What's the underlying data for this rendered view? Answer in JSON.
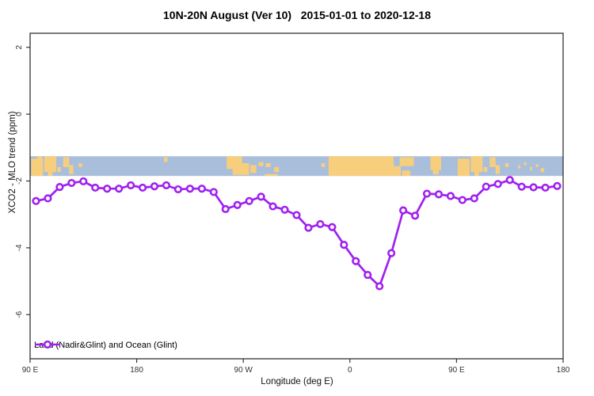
{
  "title": "10N-20N August (Ver 10)   2015-01-01 to 2020-12-18",
  "legend": {
    "label": "Land (Nadir&Glint) and Ocean (Glint)"
  },
  "colors": {
    "series": "#A020F0",
    "marker_fill": "#ffffff",
    "ocean": "#A9BEDB",
    "land": "#F7CE7C",
    "axis": "#333333",
    "tick_text": "#333333"
  },
  "chart_data": {
    "type": "line",
    "title": "10N-20N August (Ver 10)   2015-01-01 to 2020-12-18",
    "xlabel": "Longitude (deg E)",
    "ylabel": "XCO2 - MLO trend (ppm)",
    "series_name": "Land (Nadir&Glint) and Ocean (Glint)",
    "xlim": [
      90,
      540
    ],
    "ylim": [
      -7.32,
      2.42
    ],
    "grid": false,
    "legend_position": "bottom-left",
    "x_ticks": [
      {
        "pos": 90,
        "label": "90 E"
      },
      {
        "pos": 180,
        "label": "180"
      },
      {
        "pos": 270,
        "label": "90 W"
      },
      {
        "pos": 360,
        "label": "0"
      },
      {
        "pos": 450,
        "label": "90 E"
      },
      {
        "pos": 540,
        "label": "180"
      }
    ],
    "y_ticks": [
      {
        "pos": 2,
        "label": "2"
      },
      {
        "pos": 0,
        "label": "0"
      },
      {
        "pos": -2,
        "label": "-2"
      },
      {
        "pos": -4,
        "label": "-4"
      },
      {
        "pos": -6,
        "label": "-6"
      }
    ],
    "x_deg": [
      95,
      105,
      115,
      125,
      135,
      145,
      155,
      165,
      175,
      185,
      195,
      205,
      215,
      225,
      235,
      245,
      255,
      265,
      275,
      285,
      295,
      305,
      315,
      325,
      335,
      345,
      355,
      365,
      375,
      385,
      395,
      405,
      415,
      425,
      435,
      445,
      455,
      465,
      475,
      485,
      495,
      505,
      515,
      525,
      535
    ],
    "values": [
      -2.6,
      -2.52,
      -2.18,
      -2.06,
      -2.01,
      -2.2,
      -2.23,
      -2.23,
      -2.13,
      -2.2,
      -2.16,
      -2.13,
      -2.25,
      -2.23,
      -2.23,
      -2.33,
      -2.84,
      -2.72,
      -2.6,
      -2.47,
      -2.76,
      -2.86,
      -3.02,
      -3.4,
      -3.29,
      -3.38,
      -3.91,
      -4.4,
      -4.81,
      -5.15,
      -4.16,
      -2.88,
      -3.04,
      -2.38,
      -2.4,
      -2.45,
      -2.57,
      -2.52,
      -2.17,
      -2.09,
      -1.97,
      -2.17,
      -2.19,
      -2.2,
      -2.15
    ],
    "map_band": {
      "description": "world map strip of 10N-20N latitude band (ocean/land)",
      "v_top": -1.26,
      "v_bottom": -1.85,
      "land_patches": [
        [
          91,
          101,
          0.12,
          1
        ],
        [
          96,
          100,
          0,
          0.12
        ],
        [
          102,
          112,
          0,
          0.8
        ],
        [
          105,
          109,
          0.8,
          1
        ],
        [
          113,
          116,
          0.55,
          0.8
        ],
        [
          118,
          123,
          0.05,
          0.55
        ],
        [
          123,
          126.5,
          0.45,
          0.9
        ],
        [
          131,
          134,
          0.35,
          0.55
        ],
        [
          203,
          206,
          0.05,
          0.3
        ],
        [
          256,
          269,
          0,
          0.65
        ],
        [
          261,
          275,
          0.35,
          0.95
        ],
        [
          276,
          281,
          0.45,
          0.85
        ],
        [
          283,
          287,
          0.3,
          0.5
        ],
        [
          289,
          293,
          0.35,
          0.55
        ],
        [
          296,
          300,
          0.55,
          0.8
        ],
        [
          288,
          299,
          0.9,
          1
        ],
        [
          336,
          339,
          0.35,
          0.55
        ],
        [
          342,
          397,
          0,
          1
        ],
        [
          397,
          403,
          0.5,
          1
        ],
        [
          402,
          414,
          0.05,
          0.5
        ],
        [
          404,
          411,
          0.72,
          1
        ],
        [
          428,
          437,
          0,
          0.7
        ],
        [
          430,
          435,
          0.7,
          0.92
        ],
        [
          451,
          461,
          0.12,
          1
        ],
        [
          462,
          472,
          0,
          0.8
        ],
        [
          465,
          469,
          0.8,
          1
        ],
        [
          473,
          476,
          0.55,
          0.8
        ],
        [
          478,
          483,
          0.05,
          0.55
        ],
        [
          483,
          486.5,
          0.45,
          0.9
        ],
        [
          491,
          494,
          0.35,
          0.55
        ],
        [
          502,
          504,
          0.45,
          0.62
        ],
        [
          507,
          509,
          0.3,
          0.46
        ],
        [
          512,
          514,
          0.55,
          0.7
        ],
        [
          517,
          519,
          0.4,
          0.55
        ],
        [
          521,
          524,
          0.6,
          0.8
        ]
      ]
    }
  }
}
